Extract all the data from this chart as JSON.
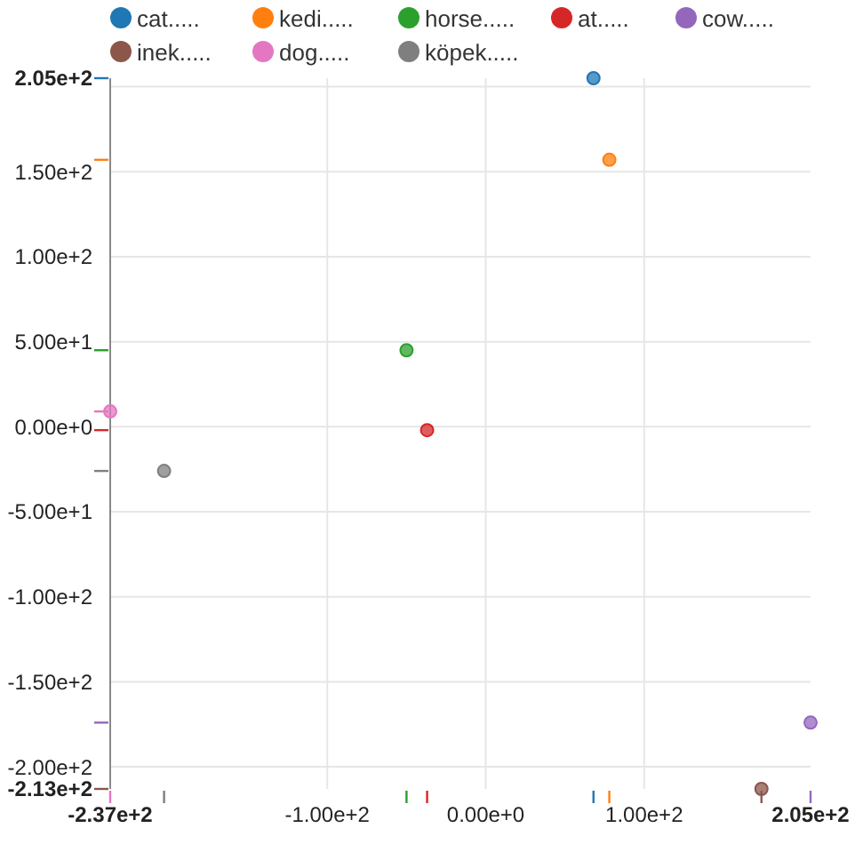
{
  "chart_data": {
    "type": "scatter",
    "xlim": [
      -237,
      205
    ],
    "ylim": [
      -213,
      205
    ],
    "xticks": [
      {
        "value": -237,
        "label": "-2.37e+2"
      },
      {
        "value": -100,
        "label": "-1.00e+2"
      },
      {
        "value": 0,
        "label": "0.00e+0"
      },
      {
        "value": 100,
        "label": "1.00e+2"
      },
      {
        "value": 205,
        "label": "2.05e+2"
      }
    ],
    "yticks": [
      {
        "value": -213,
        "label": "-2.13e+2"
      },
      {
        "value": -200,
        "label": "-2.00e+2"
      },
      {
        "value": -150,
        "label": "-1.50e+2"
      },
      {
        "value": -100,
        "label": "-1.00e+2"
      },
      {
        "value": -50,
        "label": "-5.00e+1"
      },
      {
        "value": 0,
        "label": "0.00e+0"
      },
      {
        "value": 50,
        "label": "5.00e+1"
      },
      {
        "value": 100,
        "label": "1.00e+2"
      },
      {
        "value": 150,
        "label": "1.50e+2"
      },
      {
        "value": 200,
        "label": null
      },
      {
        "value": 205,
        "label": "2.05e+2"
      }
    ],
    "grid": true,
    "legend": "top",
    "marker": "circle",
    "series": [
      {
        "name": "cat.....",
        "color": "#1f77b4",
        "x": [
          68
        ],
        "values": [
          205
        ]
      },
      {
        "name": "kedi.....",
        "color": "#ff7f0e",
        "x": [
          78
        ],
        "values": [
          157
        ]
      },
      {
        "name": "horse.....",
        "color": "#2ca02c",
        "x": [
          -50
        ],
        "values": [
          45
        ]
      },
      {
        "name": "at.....",
        "color": "#d62728",
        "x": [
          -37
        ],
        "values": [
          -2
        ]
      },
      {
        "name": "cow.....",
        "color": "#9467bd",
        "x": [
          205
        ],
        "values": [
          -174
        ]
      },
      {
        "name": "inek.....",
        "color": "#8c564b",
        "x": [
          174
        ],
        "values": [
          -213
        ]
      },
      {
        "name": "dog.....",
        "color": "#e377c2",
        "x": [
          -237
        ],
        "values": [
          9
        ]
      },
      {
        "name": "köpek.....",
        "color": "#7f7f7f",
        "x": [
          -203
        ],
        "values": [
          -26
        ]
      }
    ]
  }
}
